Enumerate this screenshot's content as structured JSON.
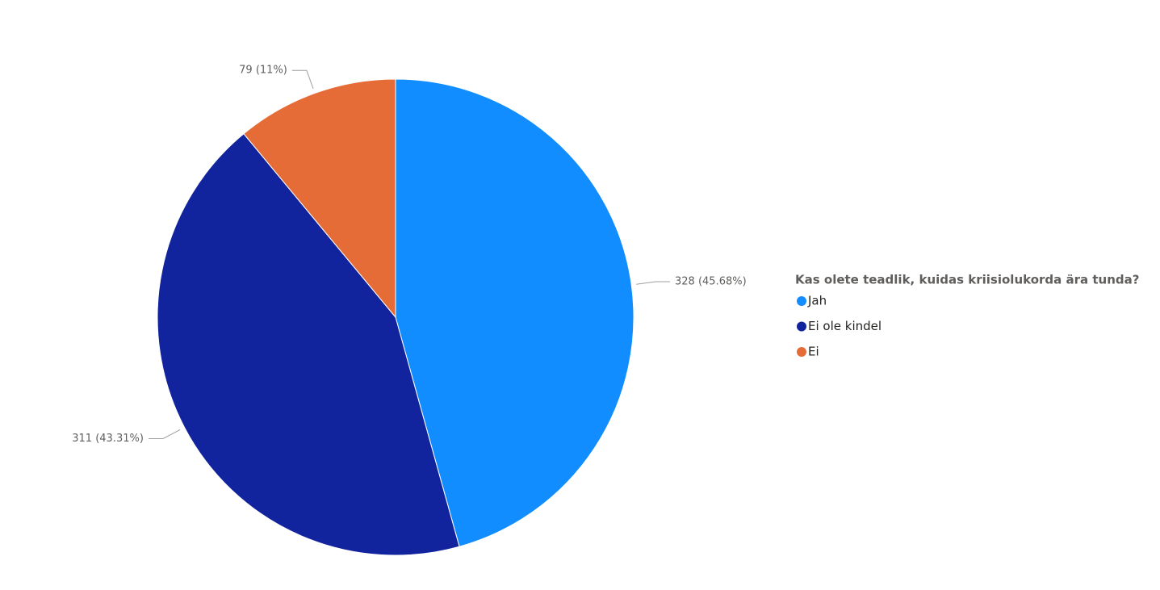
{
  "chart_data": {
    "type": "pie",
    "legend_title": "Kas olete teadlik, kuidas kriisiolukorda ära tunda?",
    "legend": "right",
    "categories": [
      "Jah",
      "Ei ole kindel",
      "Ei"
    ],
    "values": [
      328,
      311,
      79
    ],
    "value_labels": [
      "328 (45.68%)",
      "311 (43.31%)",
      "79 (11%)"
    ],
    "colors": [
      "#118DFF",
      "#12239E",
      "#E66C37"
    ]
  }
}
